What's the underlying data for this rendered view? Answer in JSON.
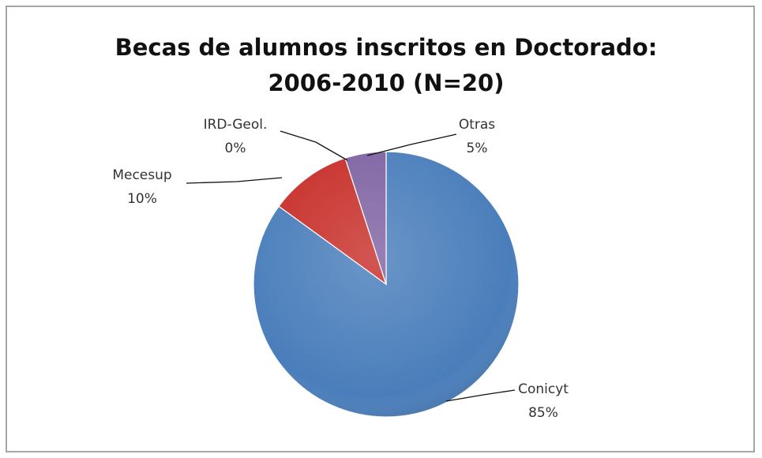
{
  "chart_data": {
    "type": "pie",
    "title": [
      "Becas de alumnos inscritos en Doctorado:",
      "2006-2010 (N=20)"
    ],
    "categories": [
      "Conicyt",
      "Mecesup",
      "IRD-Geol.",
      "Otras"
    ],
    "values": [
      85,
      10,
      0,
      5
    ],
    "value_labels": [
      "85%",
      "10%",
      "0%",
      "5%"
    ],
    "colors": [
      "#4a7ebb",
      "#c8302b",
      "#9bbb59",
      "#8064a2"
    ]
  }
}
